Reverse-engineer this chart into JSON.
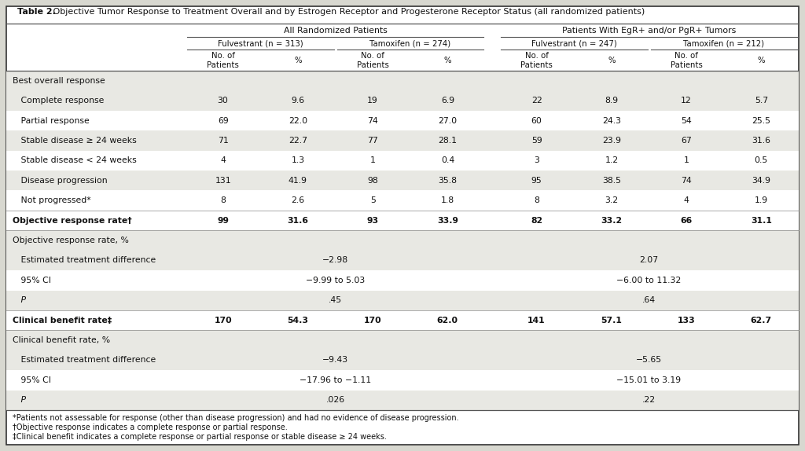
{
  "title_bold": "Table 2.",
  "title_rest": " Objective Tumor Response to Treatment Overall and by Estrogen Receptor and Progesterone Receptor Status (all randomized patients)",
  "col_group1_label": "All Randomized Patients",
  "col_group2_label": "Patients With EgR+ and/or PgR+ Tumors",
  "subgroup1a": "Fulvestrant (n = 313)",
  "subgroup1b": "Tamoxifen (n = 274)",
  "subgroup2a": "Fulvestrant (n = 247)",
  "subgroup2b": "Tamoxifen (n = 212)",
  "footnotes": [
    "*Patients not assessable for response (other than disease progression) and had no evidence of disease progression.",
    "†Objective response indicates a complete response or partial response.",
    "‡Clinical benefit indicates a complete response or partial response or stable disease ≥ 24 weeks."
  ],
  "rows": [
    {
      "label": "Best overall response",
      "type": "section",
      "values": [
        "",
        "",
        "",
        "",
        "",
        "",
        "",
        ""
      ],
      "bg": "#e8e8e3"
    },
    {
      "label": "   Complete response",
      "type": "data",
      "values": [
        "30",
        "9.6",
        "19",
        "6.9",
        "22",
        "8.9",
        "12",
        "5.7"
      ],
      "bg": "#e8e8e3"
    },
    {
      "label": "   Partial response",
      "type": "data",
      "values": [
        "69",
        "22.0",
        "74",
        "27.0",
        "60",
        "24.3",
        "54",
        "25.5"
      ],
      "bg": "#ffffff"
    },
    {
      "label": "   Stable disease ≥ 24 weeks",
      "type": "data",
      "values": [
        "71",
        "22.7",
        "77",
        "28.1",
        "59",
        "23.9",
        "67",
        "31.6"
      ],
      "bg": "#e8e8e3"
    },
    {
      "label": "   Stable disease < 24 weeks",
      "type": "data",
      "values": [
        "4",
        "1.3",
        "1",
        "0.4",
        "3",
        "1.2",
        "1",
        "0.5"
      ],
      "bg": "#ffffff"
    },
    {
      "label": "   Disease progression",
      "type": "data",
      "values": [
        "131",
        "41.9",
        "98",
        "35.8",
        "95",
        "38.5",
        "74",
        "34.9"
      ],
      "bg": "#e8e8e3"
    },
    {
      "label": "   Not progressed*",
      "type": "data",
      "values": [
        "8",
        "2.6",
        "5",
        "1.8",
        "8",
        "3.2",
        "4",
        "1.9"
      ],
      "bg": "#ffffff"
    },
    {
      "label": "Objective response rate†",
      "type": "bold",
      "values": [
        "99",
        "31.6",
        "93",
        "33.9",
        "82",
        "33.2",
        "66",
        "31.1"
      ],
      "bg": "#ffffff"
    },
    {
      "label": "Objective response rate, %",
      "type": "section",
      "values": [
        "",
        "",
        "",
        "",
        "",
        "",
        "",
        ""
      ],
      "bg": "#e8e8e3"
    },
    {
      "label": "   Estimated treatment difference",
      "type": "span",
      "span1": "−2.98",
      "span2": "2.07",
      "bg": "#e8e8e3"
    },
    {
      "label": "   95% CI",
      "type": "span",
      "span1": "−9.99 to 5.03",
      "span2": "−6.00 to 11.32",
      "bg": "#ffffff"
    },
    {
      "label": "   P",
      "type": "span_italic",
      "span1": ".45",
      "span2": ".64",
      "bg": "#e8e8e3"
    },
    {
      "label": "Clinical benefit rate‡",
      "type": "bold",
      "values": [
        "170",
        "54.3",
        "170",
        "62.0",
        "141",
        "57.1",
        "133",
        "62.7"
      ],
      "bg": "#ffffff"
    },
    {
      "label": "Clinical benefit rate, %",
      "type": "section",
      "values": [
        "",
        "",
        "",
        "",
        "",
        "",
        "",
        ""
      ],
      "bg": "#e8e8e3"
    },
    {
      "label": "   Estimated treatment difference",
      "type": "span",
      "span1": "−9.43",
      "span2": "−5.65",
      "bg": "#e8e8e3"
    },
    {
      "label": "   95% CI",
      "type": "span",
      "span1": "−17.96 to −1.11",
      "span2": "−15.01 to 3.19",
      "bg": "#ffffff"
    },
    {
      "label": "   P",
      "type": "span_italic",
      "span1": ".026",
      "span2": ".22",
      "bg": "#e8e8e3"
    }
  ],
  "text_color": "#111111",
  "line_color": "#555555",
  "outer_bg": "#d8d8d0",
  "inner_bg": "#ffffff"
}
